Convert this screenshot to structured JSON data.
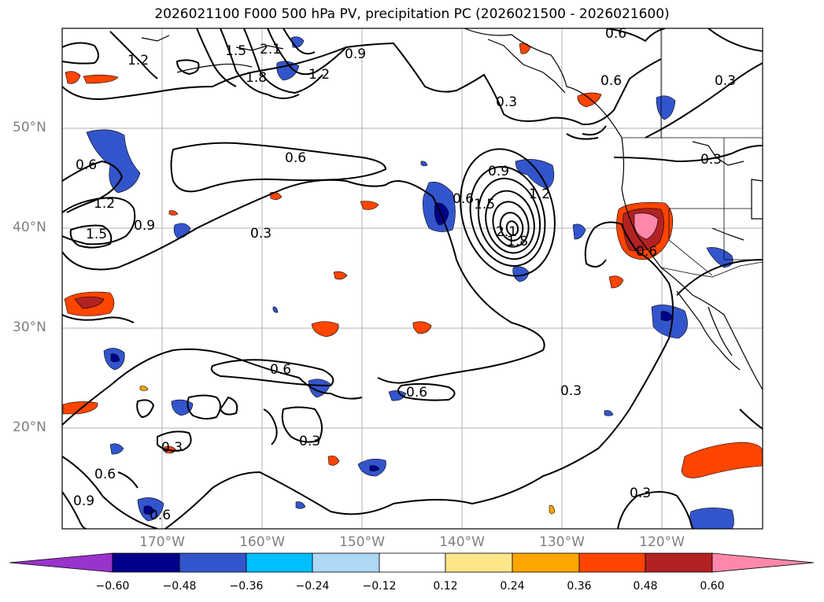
{
  "title": "2026021100 F000 500 hPa PV, precipitation PC (2026021500 - 2026021600)",
  "latitude_labels": [
    "50°N",
    "40°N",
    "30°N",
    "20°N"
  ],
  "longitude_labels": [
    "170°W",
    "160°W",
    "150°W",
    "140°W",
    "130°W",
    "120°W"
  ],
  "colorbar": {
    "tick_labels": [
      "−0.60",
      "−0.48",
      "−0.36",
      "−0.24",
      "−0.12",
      "0.12",
      "0.24",
      "0.36",
      "0.48",
      "0.60"
    ],
    "colors": [
      "#9933cc",
      "#00008b",
      "#3355cc",
      "#00bfff",
      "#add8f6",
      "#ffffff",
      "#fde68a",
      "#ffa500",
      "#ff4500",
      "#b22222",
      "#ff88aa"
    ]
  },
  "contour_labels": [
    "0.3",
    "0.6",
    "0.9",
    "1.2",
    "1.5",
    "1.8",
    "2.1"
  ]
}
